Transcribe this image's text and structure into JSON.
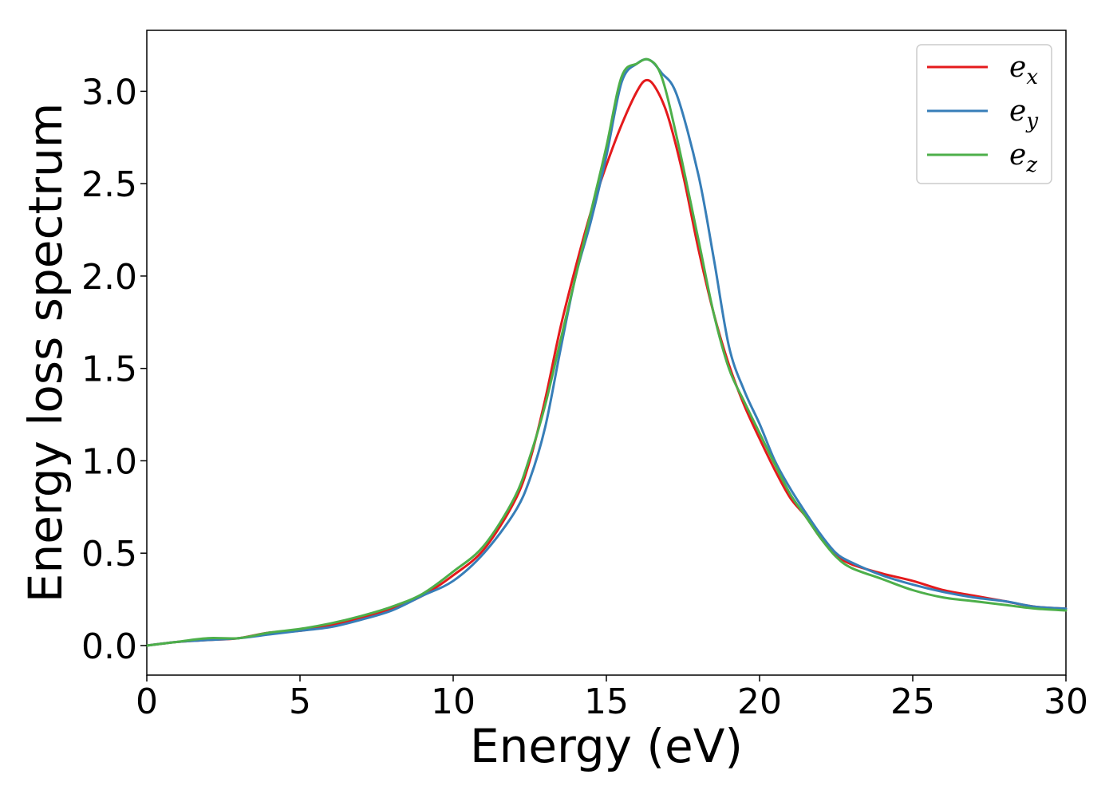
{
  "chart_data": {
    "type": "line",
    "title": "",
    "xlabel": "Energy (eV)",
    "ylabel": "Energy loss spectrum",
    "xlim": [
      0,
      30
    ],
    "ylim": [
      -0.16,
      3.33
    ],
    "xticks": [
      0,
      5,
      10,
      15,
      20,
      25,
      30
    ],
    "xtick_labels": [
      "0",
      "5",
      "10",
      "15",
      "20",
      "25",
      "30"
    ],
    "yticks": [
      0.0,
      0.5,
      1.0,
      1.5,
      2.0,
      2.5,
      3.0
    ],
    "ytick_labels": [
      "0.0",
      "0.5",
      "1.0",
      "1.5",
      "2.0",
      "2.5",
      "3.0"
    ],
    "grid": false,
    "legend_position": "top-right",
    "series": [
      {
        "name": "e",
        "subscript": "x",
        "color": "#e41a1c",
        "x": [
          0,
          1,
          2,
          3,
          4,
          5,
          6,
          7,
          8,
          9,
          10,
          11,
          12,
          12.5,
          13,
          13.5,
          14,
          14.5,
          15,
          15.5,
          16,
          16.3,
          16.6,
          17,
          17.5,
          18,
          18.5,
          19,
          19.5,
          20,
          20.5,
          21,
          21.5,
          22,
          22.5,
          23,
          24,
          25,
          26,
          27,
          28,
          29,
          30
        ],
        "y": [
          0.0,
          0.02,
          0.03,
          0.04,
          0.07,
          0.08,
          0.11,
          0.15,
          0.2,
          0.27,
          0.38,
          0.52,
          0.78,
          1.0,
          1.33,
          1.72,
          2.05,
          2.35,
          2.6,
          2.82,
          3.0,
          3.06,
          3.02,
          2.87,
          2.55,
          2.15,
          1.8,
          1.52,
          1.3,
          1.12,
          0.95,
          0.8,
          0.7,
          0.58,
          0.49,
          0.44,
          0.39,
          0.35,
          0.3,
          0.27,
          0.24,
          0.21,
          0.2
        ]
      },
      {
        "name": "e",
        "subscript": "y",
        "color": "#377eb8",
        "x": [
          0,
          1,
          2,
          3,
          4,
          5,
          6,
          7,
          8,
          9,
          10,
          11,
          12,
          12.5,
          13,
          13.5,
          14,
          14.5,
          15,
          15.5,
          16,
          16.4,
          16.8,
          17.3,
          18,
          18.5,
          19,
          19.5,
          20,
          20.5,
          21,
          21.5,
          22,
          22.5,
          23,
          24,
          25,
          26,
          27,
          28,
          29,
          30
        ],
        "y": [
          0.0,
          0.02,
          0.03,
          0.04,
          0.06,
          0.08,
          0.1,
          0.14,
          0.19,
          0.27,
          0.35,
          0.5,
          0.72,
          0.9,
          1.18,
          1.6,
          2.0,
          2.3,
          2.65,
          3.05,
          3.15,
          3.17,
          3.1,
          2.98,
          2.55,
          2.1,
          1.62,
          1.38,
          1.2,
          1.0,
          0.85,
          0.72,
          0.6,
          0.5,
          0.45,
          0.38,
          0.33,
          0.29,
          0.26,
          0.24,
          0.21,
          0.2
        ]
      },
      {
        "name": "e",
        "subscript": "z",
        "color": "#4daf4a",
        "x": [
          0,
          1,
          2,
          3,
          4,
          5,
          6,
          7,
          8,
          9,
          10,
          11,
          12,
          12.5,
          13,
          13.5,
          14,
          14.5,
          15,
          15.5,
          16,
          16.4,
          16.8,
          17.3,
          18,
          18.5,
          19,
          19.5,
          20,
          20.5,
          21,
          21.5,
          22,
          22.5,
          23,
          24,
          25,
          26,
          27,
          28,
          29,
          30
        ],
        "y": [
          0.0,
          0.02,
          0.04,
          0.04,
          0.07,
          0.09,
          0.12,
          0.16,
          0.21,
          0.28,
          0.4,
          0.54,
          0.8,
          1.02,
          1.3,
          1.65,
          2.0,
          2.35,
          2.7,
          3.08,
          3.15,
          3.17,
          3.08,
          2.75,
          2.2,
          1.8,
          1.5,
          1.32,
          1.15,
          0.98,
          0.82,
          0.7,
          0.58,
          0.48,
          0.42,
          0.36,
          0.3,
          0.26,
          0.24,
          0.22,
          0.2,
          0.19
        ]
      }
    ]
  }
}
